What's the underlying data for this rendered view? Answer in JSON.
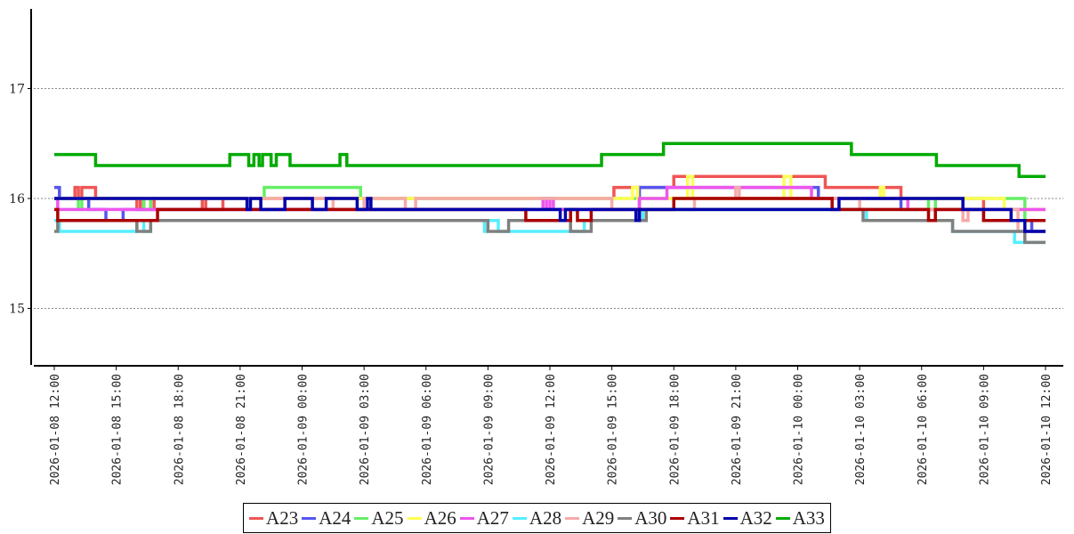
{
  "chart_data": {
    "type": "line",
    "step": true,
    "title": "",
    "xlabel": "",
    "ylabel": "",
    "ylim": [
      14.5,
      17.75
    ],
    "xlim": [
      "2026-01-08 12:00",
      "2026-01-10 12:00"
    ],
    "yticks": [
      15,
      16,
      17
    ],
    "ytick_labels": [
      "15",
      "16",
      "17"
    ],
    "grid": "horizontal dotted",
    "legend_position": "bottom",
    "xtick_labels": [
      "2026-01-08 12:00",
      "2026-01-08 15:00",
      "2026-01-08 18:00",
      "2026-01-08 21:00",
      "2026-01-09 00:00",
      "2026-01-09 03:00",
      "2026-01-09 06:00",
      "2026-01-09 09:00",
      "2026-01-09 12:00",
      "2026-01-09 15:00",
      "2026-01-09 18:00",
      "2026-01-09 21:00",
      "2026-01-10 00:00",
      "2026-01-10 03:00",
      "2026-01-10 06:00",
      "2026-01-10 09:00",
      "2026-01-10 12:00"
    ],
    "series": [
      {
        "name": "A23",
        "color": "#f05555",
        "points": [
          [
            "2026-01-08 12:00",
            16.0
          ],
          [
            "2026-01-08 13:00",
            16.1
          ],
          [
            "2026-01-08 13:10",
            16.0
          ],
          [
            "2026-01-08 13:20",
            16.1
          ],
          [
            "2026-01-08 14:00",
            16.0
          ],
          [
            "2026-01-08 16:00",
            15.9
          ],
          [
            "2026-01-08 16:10",
            16.0
          ],
          [
            "2026-01-08 16:20",
            15.9
          ],
          [
            "2026-01-08 16:40",
            16.0
          ],
          [
            "2026-01-08 16:50",
            15.9
          ],
          [
            "2026-01-08 19:10",
            16.0
          ],
          [
            "2026-01-08 19:20",
            15.9
          ],
          [
            "2026-01-08 20:10",
            16.0
          ],
          [
            "2026-01-09 15:06",
            16.1
          ],
          [
            "2026-01-09 18:00",
            16.2
          ],
          [
            "2026-01-10 01:20",
            16.1
          ],
          [
            "2026-01-10 05:00",
            16.0
          ],
          [
            "2026-01-10 09:00",
            15.9
          ],
          [
            "2026-01-10 12:00",
            15.9
          ]
        ]
      },
      {
        "name": "A24",
        "color": "#5555ee",
        "points": [
          [
            "2026-01-08 12:00",
            16.1
          ],
          [
            "2026-01-08 12:15",
            16.0
          ],
          [
            "2026-01-08 13:40",
            15.9
          ],
          [
            "2026-01-08 14:30",
            15.8
          ],
          [
            "2026-01-08 15:20",
            15.9
          ],
          [
            "2026-01-09 16:10",
            15.8
          ],
          [
            "2026-01-09 16:20",
            16.1
          ],
          [
            "2026-01-10 01:00",
            16.0
          ],
          [
            "2026-01-10 05:00",
            15.9
          ],
          [
            "2026-01-10 09:00",
            15.8
          ],
          [
            "2026-01-10 11:20",
            15.7
          ],
          [
            "2026-01-10 12:00",
            15.7
          ]
        ]
      },
      {
        "name": "A25",
        "color": "#66ee66",
        "points": [
          [
            "2026-01-08 12:00",
            16.0
          ],
          [
            "2026-01-08 13:10",
            15.9
          ],
          [
            "2026-01-08 13:20",
            16.0
          ],
          [
            "2026-01-08 16:20",
            15.9
          ],
          [
            "2026-01-08 16:40",
            16.0
          ],
          [
            "2026-01-08 22:10",
            16.1
          ],
          [
            "2026-01-09 02:50",
            16.0
          ],
          [
            "2026-01-10 06:20",
            15.9
          ],
          [
            "2026-01-10 06:40",
            16.0
          ],
          [
            "2026-01-10 11:00",
            15.8
          ],
          [
            "2026-01-10 12:00",
            15.8
          ]
        ]
      },
      {
        "name": "A26",
        "color": "#ffff55",
        "points": [
          [
            "2026-01-08 12:00",
            16.0
          ],
          [
            "2026-01-09 16:00",
            16.1
          ],
          [
            "2026-01-09 16:15",
            16.0
          ],
          [
            "2026-01-09 18:40",
            16.2
          ],
          [
            "2026-01-09 18:55",
            16.0
          ],
          [
            "2026-01-09 23:20",
            16.2
          ],
          [
            "2026-01-09 23:40",
            16.0
          ],
          [
            "2026-01-10 04:00",
            16.1
          ],
          [
            "2026-01-10 04:10",
            16.0
          ],
          [
            "2026-01-10 10:00",
            15.9
          ],
          [
            "2026-01-10 12:00",
            15.9
          ]
        ]
      },
      {
        "name": "A27",
        "color": "#ee55ee",
        "points": [
          [
            "2026-01-08 12:00",
            16.0
          ],
          [
            "2026-01-08 12:10",
            15.9
          ],
          [
            "2026-01-09 11:40",
            16.0
          ],
          [
            "2026-01-09 11:50",
            15.9
          ],
          [
            "2026-01-09 12:00",
            16.0
          ],
          [
            "2026-01-09 12:10",
            15.9
          ],
          [
            "2026-01-09 16:20",
            16.0
          ],
          [
            "2026-01-09 17:40",
            16.1
          ],
          [
            "2026-01-10 00:40",
            16.0
          ],
          [
            "2026-01-10 05:20",
            15.9
          ],
          [
            "2026-01-10 12:00",
            15.9
          ]
        ]
      },
      {
        "name": "A28",
        "color": "#55eeff",
        "points": [
          [
            "2026-01-08 12:00",
            15.8
          ],
          [
            "2026-01-08 12:15",
            15.7
          ],
          [
            "2026-01-08 16:00",
            15.8
          ],
          [
            "2026-01-08 16:20",
            15.7
          ],
          [
            "2026-01-08 16:40",
            15.8
          ],
          [
            "2026-01-09 08:50",
            15.7
          ],
          [
            "2026-01-09 09:00",
            15.8
          ],
          [
            "2026-01-09 09:30",
            15.7
          ],
          [
            "2026-01-09 13:40",
            15.8
          ],
          [
            "2026-01-09 16:30",
            15.9
          ],
          [
            "2026-01-10 03:20",
            15.8
          ],
          [
            "2026-01-10 07:30",
            15.7
          ],
          [
            "2026-01-10 10:30",
            15.6
          ],
          [
            "2026-01-10 12:00",
            15.6
          ]
        ]
      },
      {
        "name": "A29",
        "color": "#f5aaaa",
        "points": [
          [
            "2026-01-08 12:00",
            16.0
          ],
          [
            "2026-01-09 01:30",
            15.9
          ],
          [
            "2026-01-09 03:00",
            16.0
          ],
          [
            "2026-01-09 05:00",
            15.9
          ],
          [
            "2026-01-09 05:30",
            16.0
          ],
          [
            "2026-01-09 15:00",
            15.9
          ],
          [
            "2026-01-09 19:00",
            16.0
          ],
          [
            "2026-01-09 21:00",
            16.1
          ],
          [
            "2026-01-09 21:10",
            16.0
          ],
          [
            "2026-01-10 03:00",
            15.9
          ],
          [
            "2026-01-10 08:00",
            15.8
          ],
          [
            "2026-01-10 08:15",
            15.9
          ],
          [
            "2026-01-10 10:40",
            15.7
          ],
          [
            "2026-01-10 12:00",
            15.7
          ]
        ]
      },
      {
        "name": "A30",
        "color": "#808080",
        "points": [
          [
            "2026-01-08 12:00",
            15.7
          ],
          [
            "2026-01-08 12:10",
            15.8
          ],
          [
            "2026-01-08 16:00",
            15.7
          ],
          [
            "2026-01-08 16:40",
            15.8
          ],
          [
            "2026-01-09 09:00",
            15.7
          ],
          [
            "2026-01-09 10:00",
            15.8
          ],
          [
            "2026-01-09 13:00",
            15.7
          ],
          [
            "2026-01-09 14:00",
            15.8
          ],
          [
            "2026-01-09 16:40",
            15.9
          ],
          [
            "2026-01-10 03:10",
            15.8
          ],
          [
            "2026-01-10 07:30",
            15.7
          ],
          [
            "2026-01-10 11:00",
            15.6
          ],
          [
            "2026-01-10 12:00",
            15.6
          ]
        ]
      },
      {
        "name": "A31",
        "color": "#aa0000",
        "points": [
          [
            "2026-01-08 12:00",
            15.9
          ],
          [
            "2026-01-08 12:10",
            15.8
          ],
          [
            "2026-01-08 17:00",
            15.9
          ],
          [
            "2026-01-09 10:50",
            15.8
          ],
          [
            "2026-01-09 13:00",
            15.9
          ],
          [
            "2026-01-09 13:20",
            15.8
          ],
          [
            "2026-01-09 14:00",
            15.9
          ],
          [
            "2026-01-09 18:00",
            16.0
          ],
          [
            "2026-01-10 01:40",
            15.9
          ],
          [
            "2026-01-10 06:20",
            15.8
          ],
          [
            "2026-01-10 06:40",
            15.9
          ],
          [
            "2026-01-10 09:00",
            15.8
          ],
          [
            "2026-01-10 12:00",
            15.8
          ]
        ]
      },
      {
        "name": "A32",
        "color": "#0000aa",
        "points": [
          [
            "2026-01-08 12:00",
            16.0
          ],
          [
            "2026-01-08 21:20",
            15.9
          ],
          [
            "2026-01-08 21:30",
            16.0
          ],
          [
            "2026-01-08 22:00",
            15.9
          ],
          [
            "2026-01-08 23:10",
            16.0
          ],
          [
            "2026-01-09 00:30",
            15.9
          ],
          [
            "2026-01-09 01:10",
            16.0
          ],
          [
            "2026-01-09 02:40",
            15.9
          ],
          [
            "2026-01-09 03:10",
            16.0
          ],
          [
            "2026-01-09 03:20",
            15.9
          ],
          [
            "2026-01-09 12:30",
            15.8
          ],
          [
            "2026-01-09 12:45",
            15.9
          ],
          [
            "2026-01-09 16:10",
            15.8
          ],
          [
            "2026-01-09 16:20",
            15.9
          ],
          [
            "2026-01-10 02:00",
            16.0
          ],
          [
            "2026-01-10 08:00",
            15.9
          ],
          [
            "2026-01-10 10:20",
            15.8
          ],
          [
            "2026-01-10 11:00",
            15.7
          ],
          [
            "2026-01-10 12:00",
            15.7
          ]
        ]
      },
      {
        "name": "A33",
        "color": "#00aa00",
        "points": [
          [
            "2026-01-08 12:00",
            16.4
          ],
          [
            "2026-01-08 14:00",
            16.3
          ],
          [
            "2026-01-08 20:30",
            16.4
          ],
          [
            "2026-01-08 21:25",
            16.3
          ],
          [
            "2026-01-08 21:40",
            16.4
          ],
          [
            "2026-01-08 21:55",
            16.3
          ],
          [
            "2026-01-08 22:05",
            16.4
          ],
          [
            "2026-01-08 22:30",
            16.3
          ],
          [
            "2026-01-08 22:45",
            16.4
          ],
          [
            "2026-01-08 23:25",
            16.3
          ],
          [
            "2026-01-09 01:50",
            16.4
          ],
          [
            "2026-01-09 02:10",
            16.3
          ],
          [
            "2026-01-09 14:30",
            16.4
          ],
          [
            "2026-01-09 17:30",
            16.5
          ],
          [
            "2026-01-10 02:36",
            16.4
          ],
          [
            "2026-01-10 06:43",
            16.3
          ],
          [
            "2026-01-10 10:43",
            16.2
          ],
          [
            "2026-01-10 12:00",
            16.2
          ]
        ]
      }
    ]
  }
}
